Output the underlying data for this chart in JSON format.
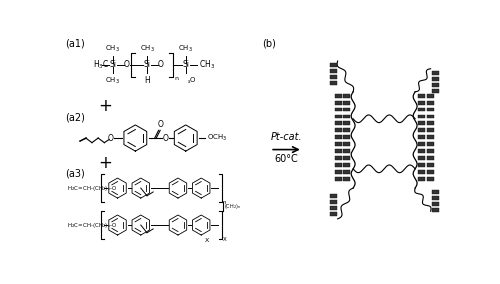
{
  "bg_color": "#ffffff",
  "label_a1": "(a1)",
  "label_a2": "(a2)",
  "label_a3": "(a3)",
  "label_b": "(b)",
  "reaction_label1": "Pt-cat.",
  "reaction_label2": "60°C",
  "line_color": "#000000",
  "text_color": "#000000",
  "gray_color": "#555555"
}
